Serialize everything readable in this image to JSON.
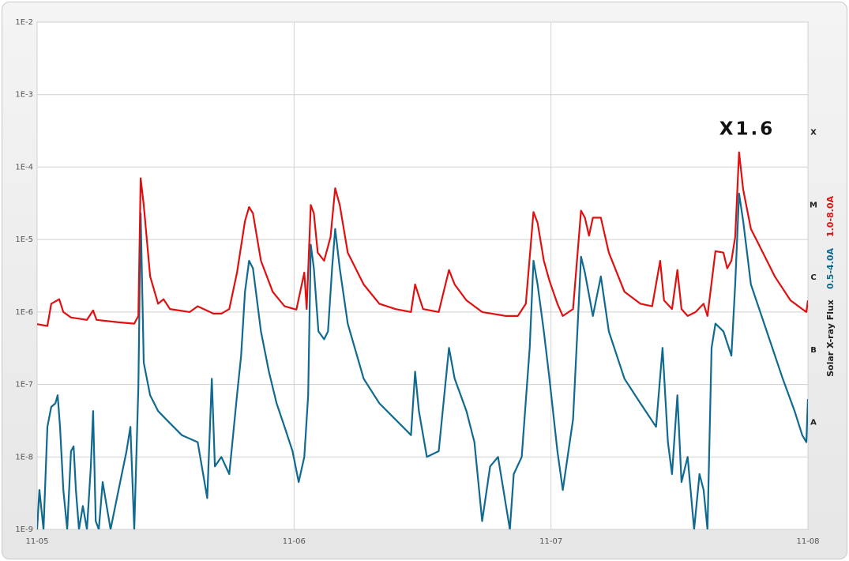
{
  "chart_data": {
    "type": "line",
    "annotation": "X1.6",
    "y2_title": "Solar X-ray Flux",
    "log_y": true,
    "grid": true,
    "ylim": [
      1e-09,
      0.01
    ],
    "yticks": [
      {
        "value": 1e-09,
        "label": "1E-9"
      },
      {
        "value": 1e-08,
        "label": "1E-8"
      },
      {
        "value": 1e-07,
        "label": "1E-7"
      },
      {
        "value": 1e-06,
        "label": "1E-6"
      },
      {
        "value": 1e-05,
        "label": "1E-5"
      },
      {
        "value": 0.0001,
        "label": "1E-4"
      },
      {
        "value": 0.001,
        "label": "1E-3"
      },
      {
        "value": 0.01,
        "label": "1E-2"
      }
    ],
    "xlim": [
      0,
      3
    ],
    "xticks": [
      {
        "value": 0,
        "label": "11-05"
      },
      {
        "value": 1,
        "label": "11-06"
      },
      {
        "value": 2,
        "label": "11-07"
      },
      {
        "value": 3,
        "label": "11-08"
      }
    ],
    "flare_classes": [
      {
        "value": 0.0003,
        "label": "X"
      },
      {
        "value": 3e-05,
        "label": "M"
      },
      {
        "value": 3e-06,
        "label": "C"
      },
      {
        "value": 3e-07,
        "label": "B"
      },
      {
        "value": 3e-08,
        "label": "A"
      }
    ],
    "series": [
      {
        "name": "1.0-8.0A",
        "color": "#e01010",
        "x": [
          0,
          0.04,
          0.055,
          0.086,
          0.102,
          0.132,
          0.194,
          0.218,
          0.231,
          0.317,
          0.378,
          0.394,
          0.403,
          0.415,
          0.44,
          0.471,
          0.492,
          0.517,
          0.594,
          0.625,
          0.686,
          0.717,
          0.748,
          0.778,
          0.809,
          0.825,
          0.84,
          0.871,
          0.917,
          0.963,
          1.009,
          1.04,
          1.049,
          1.065,
          1.077,
          1.092,
          1.117,
          1.142,
          1.16,
          1.178,
          1.209,
          1.271,
          1.332,
          1.394,
          1.455,
          1.471,
          1.502,
          1.563,
          1.603,
          1.625,
          1.671,
          1.732,
          1.825,
          1.871,
          1.902,
          1.932,
          1.948,
          1.972,
          1.994,
          2.025,
          2.046,
          2.086,
          2.117,
          2.132,
          2.148,
          2.163,
          2.194,
          2.225,
          2.286,
          2.348,
          2.394,
          2.425,
          2.44,
          2.471,
          2.492,
          2.508,
          2.532,
          2.563,
          2.594,
          2.609,
          2.64,
          2.671,
          2.686,
          2.702,
          2.717,
          2.732,
          2.748,
          2.778,
          2.809,
          2.871,
          2.932,
          2.978,
          2.994,
          3.0
        ],
        "values": [
          6.8e-07,
          6.4e-07,
          1.3e-06,
          1.5e-06,
          1e-06,
          8.4e-07,
          7.8e-07,
          1.05e-06,
          7.8e-07,
          7.2e-07,
          6.9e-07,
          8.8e-07,
          7e-05,
          3e-05,
          3.1e-06,
          1.3e-06,
          1.5e-06,
          1.1e-06,
          1e-06,
          1.2e-06,
          9.5e-07,
          9.5e-07,
          1.1e-06,
          3.5e-06,
          1.8e-05,
          2.8e-05,
          2.3e-05,
          5.1e-06,
          1.9e-06,
          1.2e-06,
          1.08e-06,
          3.5e-06,
          1.1e-06,
          3e-05,
          2.3e-05,
          6.6e-06,
          5.1e-06,
          1.08e-05,
          5.1e-05,
          3e-05,
          6.6e-06,
          2.4e-06,
          1.3e-06,
          1.1e-06,
          1e-06,
          2.4e-06,
          1.1e-06,
          1e-06,
          3.8e-06,
          2.4e-06,
          1.45e-06,
          1e-06,
          8.8e-07,
          8.8e-07,
          1.3e-06,
          2.4e-05,
          1.7e-05,
          5.1e-06,
          2.7e-06,
          1.3e-06,
          8.8e-07,
          1.1e-06,
          2.5e-05,
          2e-05,
          1.13e-05,
          2e-05,
          2e-05,
          6.6e-06,
          1.9e-06,
          1.3e-06,
          1.2e-06,
          5.1e-06,
          1.45e-06,
          1.1e-06,
          3.8e-06,
          1.1e-06,
          8.8e-07,
          1e-06,
          1.3e-06,
          8.8e-07,
          6.9e-06,
          6.6e-06,
          4e-06,
          5.1e-06,
          1.08e-05,
          0.00016,
          4.9e-05,
          1.4e-05,
          8.5e-06,
          3.1e-06,
          1.45e-06,
          1.1e-06,
          1e-06,
          1.45e-06
        ]
      },
      {
        "name": "0.5-4.0A",
        "color": "#106a90",
        "x": [
          0,
          0.009,
          0.025,
          0.04,
          0.055,
          0.071,
          0.08,
          0.089,
          0.102,
          0.117,
          0.132,
          0.142,
          0.151,
          0.163,
          0.178,
          0.194,
          0.209,
          0.218,
          0.228,
          0.24,
          0.255,
          0.286,
          0.317,
          0.348,
          0.363,
          0.378,
          0.394,
          0.403,
          0.415,
          0.44,
          0.471,
          0.502,
          0.563,
          0.625,
          0.662,
          0.68,
          0.692,
          0.717,
          0.748,
          0.778,
          0.794,
          0.809,
          0.825,
          0.84,
          0.871,
          0.902,
          0.932,
          0.963,
          0.994,
          1.018,
          1.04,
          1.055,
          1.065,
          1.077,
          1.095,
          1.117,
          1.132,
          1.148,
          1.16,
          1.178,
          1.209,
          1.271,
          1.332,
          1.394,
          1.455,
          1.471,
          1.486,
          1.517,
          1.563,
          1.603,
          1.625,
          1.671,
          1.702,
          1.732,
          1.763,
          1.794,
          1.84,
          1.855,
          1.886,
          1.917,
          1.932,
          1.948,
          1.972,
          1.994,
          2.025,
          2.046,
          2.086,
          2.117,
          2.132,
          2.163,
          2.194,
          2.225,
          2.286,
          2.348,
          2.409,
          2.434,
          2.455,
          2.471,
          2.492,
          2.508,
          2.532,
          2.557,
          2.578,
          2.594,
          2.609,
          2.625,
          2.64,
          2.671,
          2.702,
          2.717,
          2.732,
          2.748,
          2.778,
          2.84,
          2.902,
          2.948,
          2.978,
          2.994,
          3.0
        ],
        "values": [
          1e-09,
          3.5e-09,
          1e-09,
          2.6e-08,
          4.9e-08,
          5.5e-08,
          7.1e-08,
          2.6e-08,
          3.5e-09,
          1e-09,
          1.2e-08,
          1.4e-08,
          3.5e-09,
          1e-09,
          2.1e-09,
          1e-09,
          7.4e-09,
          4.3e-08,
          1.3e-09,
          1e-09,
          4.5e-09,
          1e-09,
          3.5e-09,
          1.2e-08,
          2.6e-08,
          1e-09,
          9.3e-08,
          2.3e-05,
          2e-07,
          7.1e-08,
          4.3e-08,
          3.3e-08,
          2e-08,
          1.6e-08,
          2.7e-09,
          1.2e-07,
          7.4e-09,
          1e-08,
          5.8e-09,
          7.1e-08,
          2.5e-07,
          1.9e-06,
          5.1e-06,
          4e-06,
          5.4e-07,
          1.5e-07,
          5.5e-08,
          2.6e-08,
          1.2e-08,
          4.5e-09,
          1e-08,
          7.1e-08,
          8.5e-06,
          4e-06,
          5.4e-07,
          4.2e-07,
          5.4e-07,
          4e-06,
          1.4e-05,
          4e-06,
          6.9e-07,
          1.2e-07,
          5.5e-08,
          3.3e-08,
          2e-08,
          1.5e-07,
          4.3e-08,
          1e-08,
          1.2e-08,
          3.2e-07,
          1.2e-07,
          4.3e-08,
          1.6e-08,
          1.3e-09,
          7.4e-09,
          1e-08,
          1e-09,
          5.8e-09,
          1e-08,
          3.2e-07,
          5.1e-06,
          2.4e-06,
          5.4e-07,
          1.2e-07,
          1.2e-08,
          3.5e-09,
          3.3e-08,
          5.8e-06,
          3.5e-06,
          8.8e-07,
          3.1e-06,
          5.4e-07,
          1.2e-07,
          5.5e-08,
          2.6e-08,
          3.2e-07,
          1.6e-08,
          5.8e-09,
          7.1e-08,
          4.5e-09,
          1e-08,
          1e-09,
          5.8e-09,
          3.5e-09,
          1e-09,
          3.2e-07,
          6.9e-07,
          5.4e-07,
          2.5e-07,
          2.4e-06,
          4.3e-05,
          1.8e-05,
          2.4e-06,
          5.4e-07,
          1.2e-07,
          4.3e-08,
          2e-08,
          1.6e-08,
          6.3e-08
        ]
      }
    ]
  }
}
